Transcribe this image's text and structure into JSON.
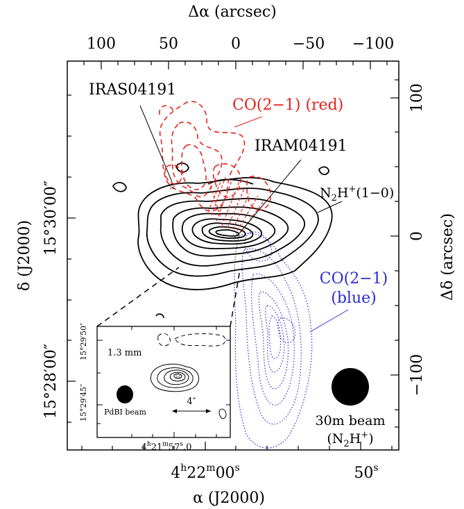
{
  "chart_data": {
    "type": "contour",
    "top_axis": {
      "label": "Δα (arcsec)",
      "ticks": [
        "100",
        "50",
        "0",
        "−50",
        "−100"
      ],
      "tick_values": [
        100,
        50,
        0,
        -50,
        -100
      ],
      "range": [
        125,
        -130
      ]
    },
    "right_axis": {
      "label": "Δδ (arcsec)",
      "ticks": [
        "100",
        "0",
        "−100"
      ],
      "tick_values": [
        100,
        0,
        -100
      ],
      "range": [
        -160,
        145
      ]
    },
    "bottom_axis": {
      "label": "α (J2000)",
      "ticks": [
        "4h22m00s",
        "50s"
      ],
      "tick_labels": [
        {
          "h": "4",
          "h_sup": "h",
          "m": "22",
          "m_sup": "m",
          "s": "00",
          "s_sup": "s"
        },
        {
          "s": "50",
          "s_sup": "s"
        }
      ]
    },
    "left_axis": {
      "label": "δ (J2000)",
      "ticks": [
        "15°30′00″",
        "15°28′00″"
      ]
    },
    "labels": {
      "iras": "IRAS04191",
      "iram": "IRAM04191",
      "co_red": "CO(2−1) (red)",
      "n2h_base": "N",
      "n2h_sub": "2",
      "n2h_rest": "H",
      "n2h_sup": "+",
      "n2h_line": "(1−0)",
      "co_blue_1": "CO(2−1)",
      "co_blue_2": "(blue)",
      "beam_30m_1": "30m beam",
      "beam_30m_2_open": "(N",
      "beam_30m_2_sub": "2",
      "beam_30m_2_mid": "H",
      "beam_30m_2_sup": "+",
      "beam_30m_2_close": ")"
    },
    "inset": {
      "label_band": "1.3 mm",
      "label_beam": "PdBI beam",
      "scale_bar": "4″",
      "x_tick": {
        "h": "4",
        "m": "21",
        "s": "57",
        "frac": ".0"
      },
      "y_ticks": [
        "15°29′45″",
        "15°29′50″"
      ]
    },
    "colors": {
      "n2h": "#000000",
      "co_red": "#e8201c",
      "co_blue": "#2a2ad0"
    }
  }
}
